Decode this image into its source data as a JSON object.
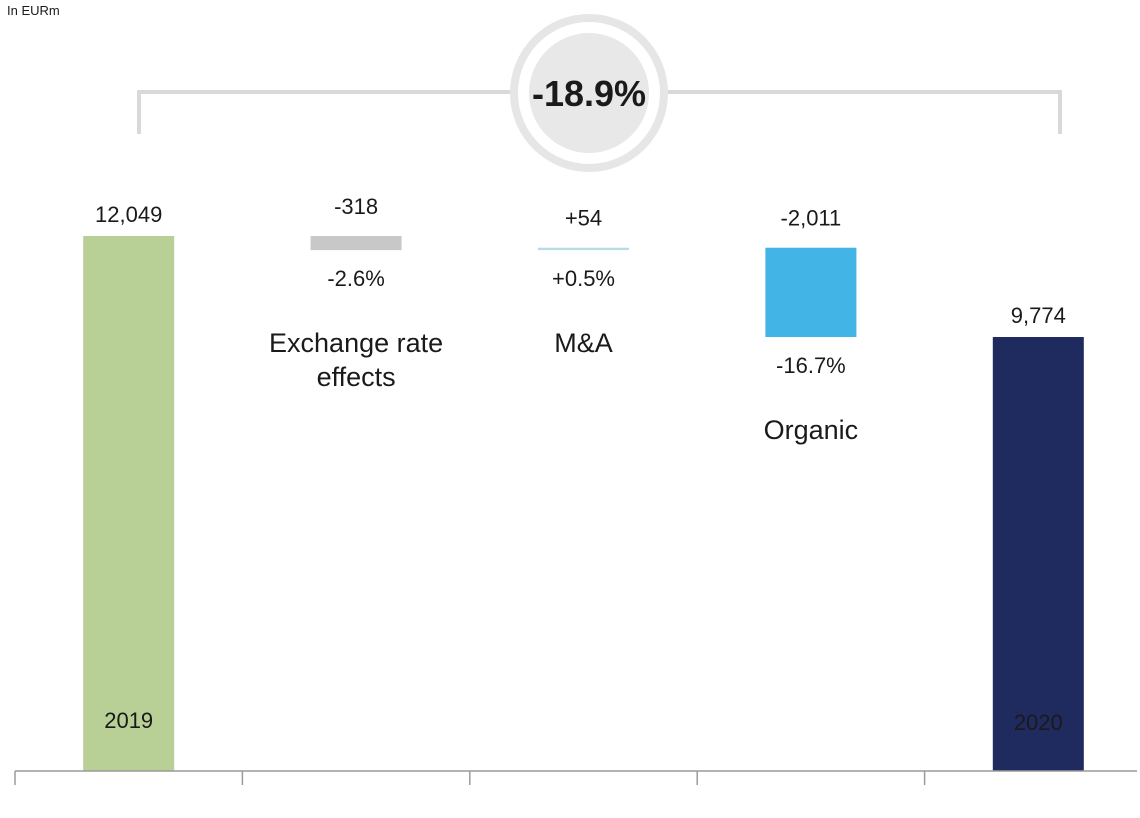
{
  "unit_note": "In EURm",
  "chart_data": {
    "type": "bar",
    "subtype": "waterfall",
    "start": {
      "label": "2019",
      "value": 12049,
      "value_label": "12,049",
      "color": "#b8cf96"
    },
    "end": {
      "label": "2020",
      "value": 9774,
      "value_label": "9,774",
      "color": "#1f2a5e"
    },
    "steps": [
      {
        "label": "Exchange rate effects",
        "label_lines": [
          "Exchange rate",
          "effects"
        ],
        "value": -318,
        "value_label": "-318",
        "percent_label": "-2.6%",
        "color": "#c8c8c8"
      },
      {
        "label": "M&A",
        "label_lines": [
          "M&A"
        ],
        "value": 54,
        "value_label": "+54",
        "percent_label": "+0.5%",
        "color": "#b9dbe4"
      },
      {
        "label": "Organic",
        "label_lines": [
          "Organic"
        ],
        "value": -2011,
        "value_label": "-2,011",
        "percent_label": "-16.7%",
        "color": "#42b4e6"
      }
    ],
    "total_change": {
      "label": "-18.9%"
    },
    "ylim": [
      0,
      12049
    ],
    "grid": false,
    "legend": "none"
  }
}
